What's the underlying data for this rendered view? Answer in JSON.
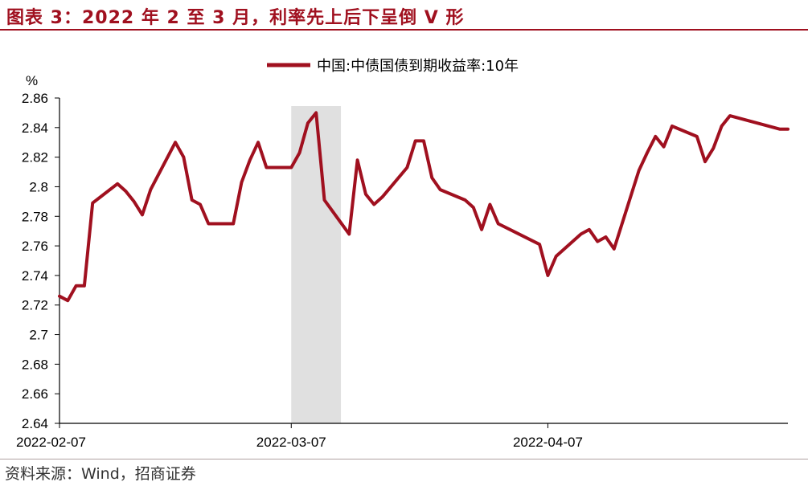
{
  "header": {
    "title": "图表 3：2022 年 2 至 3 月，利率先上后下呈倒 V 形"
  },
  "footer": {
    "source": "资料来源：Wind，招商证券"
  },
  "colors": {
    "series": "#a0101f",
    "highlight": "#e0e0e0",
    "title": "#a0101f"
  },
  "chart_data": {
    "type": "line",
    "title": "",
    "ylabel": "%",
    "xlabel": "",
    "ylim": [
      2.64,
      2.86
    ],
    "y_ticks": [
      2.64,
      2.66,
      2.68,
      2.7,
      2.72,
      2.74,
      2.76,
      2.78,
      2.8,
      2.82,
      2.84,
      2.86
    ],
    "y_tick_labels": [
      "2.64",
      "2.66",
      "2.68",
      "2.7",
      "2.72",
      "2.74",
      "2.76",
      "2.78",
      "2.8",
      "2.82",
      "2.84",
      "2.86"
    ],
    "x_tick_labels": [
      "2022-02-07",
      "2022-03-07",
      "2022-04-07"
    ],
    "x_ticks": [
      "2022-02-07",
      "2022-03-07",
      "2022-04-07"
    ],
    "x_range": [
      "2022-02-07",
      "2022-05-06"
    ],
    "legend": {
      "position": "top",
      "entries": [
        "中国:中债国债到期收益率:10年"
      ]
    },
    "highlight_range": [
      "2022-03-07",
      "2022-03-13"
    ],
    "series": [
      {
        "name": "中国:中债国债到期收益率:10年",
        "x": [
          "2022-02-07",
          "2022-02-08",
          "2022-02-09",
          "2022-02-10",
          "2022-02-11",
          "2022-02-14",
          "2022-02-15",
          "2022-02-16",
          "2022-02-17",
          "2022-02-18",
          "2022-02-21",
          "2022-02-22",
          "2022-02-23",
          "2022-02-24",
          "2022-02-25",
          "2022-02-28",
          "2022-03-01",
          "2022-03-02",
          "2022-03-03",
          "2022-03-04",
          "2022-03-07",
          "2022-03-08",
          "2022-03-09",
          "2022-03-10",
          "2022-03-11",
          "2022-03-14",
          "2022-03-15",
          "2022-03-16",
          "2022-03-17",
          "2022-03-18",
          "2022-03-21",
          "2022-03-22",
          "2022-03-23",
          "2022-03-24",
          "2022-03-25",
          "2022-03-28",
          "2022-03-29",
          "2022-03-30",
          "2022-03-31",
          "2022-04-01",
          "2022-04-06",
          "2022-04-07",
          "2022-04-08",
          "2022-04-11",
          "2022-04-12",
          "2022-04-13",
          "2022-04-14",
          "2022-04-15",
          "2022-04-18",
          "2022-04-19",
          "2022-04-20",
          "2022-04-21",
          "2022-04-22",
          "2022-04-25",
          "2022-04-26",
          "2022-04-27",
          "2022-04-28",
          "2022-04-29",
          "2022-05-05",
          "2022-05-06"
        ],
        "values": [
          2.726,
          2.723,
          2.733,
          2.733,
          2.789,
          2.802,
          2.797,
          2.79,
          2.781,
          2.798,
          2.83,
          2.82,
          2.791,
          2.788,
          2.775,
          2.775,
          2.803,
          2.818,
          2.83,
          2.813,
          2.813,
          2.823,
          2.843,
          2.85,
          2.791,
          2.768,
          2.818,
          2.795,
          2.788,
          2.793,
          2.813,
          2.831,
          2.831,
          2.806,
          2.798,
          2.791,
          2.786,
          2.771,
          2.788,
          2.775,
          2.761,
          2.74,
          2.753,
          2.768,
          2.771,
          2.763,
          2.766,
          2.758,
          2.811,
          2.823,
          2.834,
          2.827,
          2.841,
          2.834,
          2.817,
          2.826,
          2.841,
          2.848,
          2.839,
          2.839
        ]
      }
    ]
  }
}
